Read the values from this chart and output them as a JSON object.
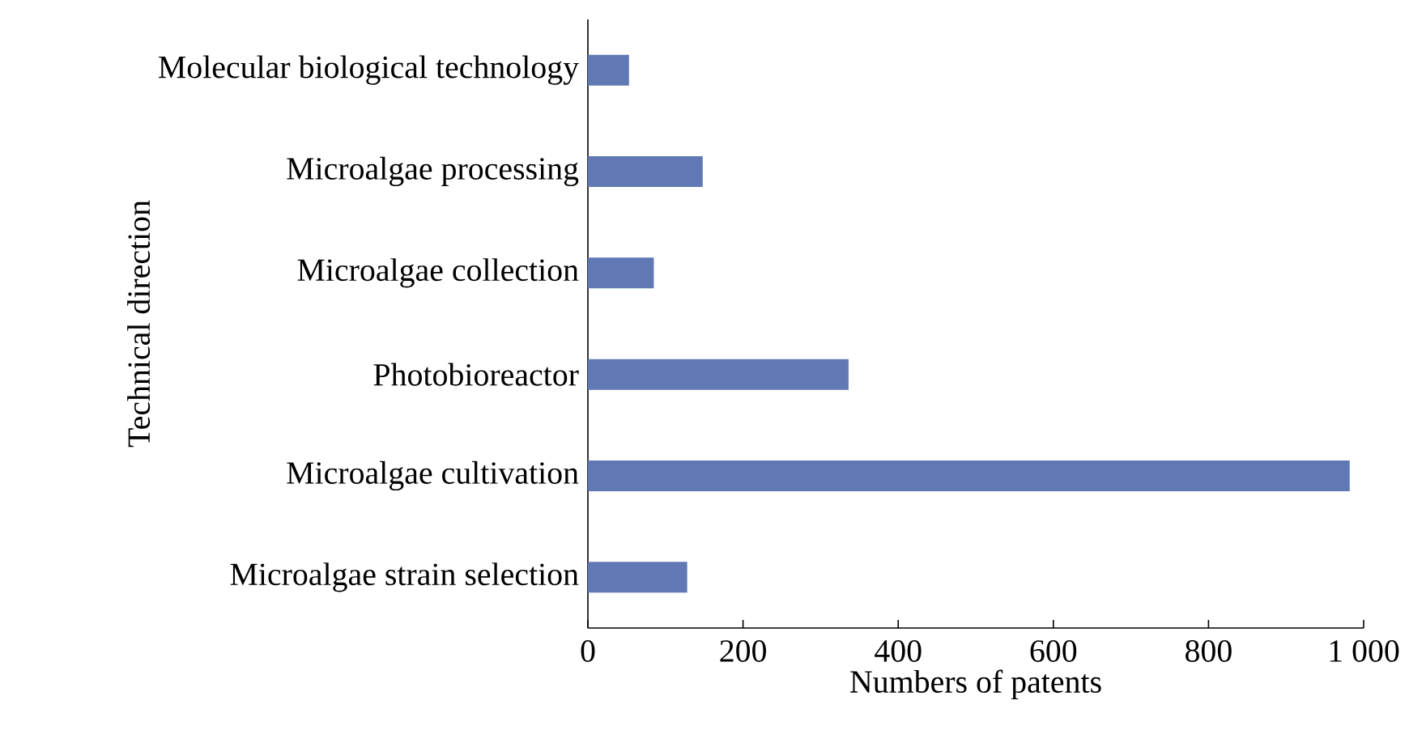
{
  "chart_data": {
    "type": "bar",
    "orientation": "horizontal",
    "xlabel": "Numbers of patents",
    "ylabel": "Technical direction",
    "categories": [
      "Molecular biological technology",
      "Microalgae processing",
      "Microalgae collection",
      "Photobioreactor",
      "Microalgae cultivation",
      "Microalgae strain selection"
    ],
    "values": [
      53,
      148,
      85,
      336,
      982,
      128
    ],
    "color": "#6079b5",
    "xlim": [
      0,
      1000
    ],
    "xticks": [
      0,
      200,
      400,
      600,
      800,
      {
        "value": 1000,
        "label": "1 000"
      }
    ],
    "grid": false
  }
}
